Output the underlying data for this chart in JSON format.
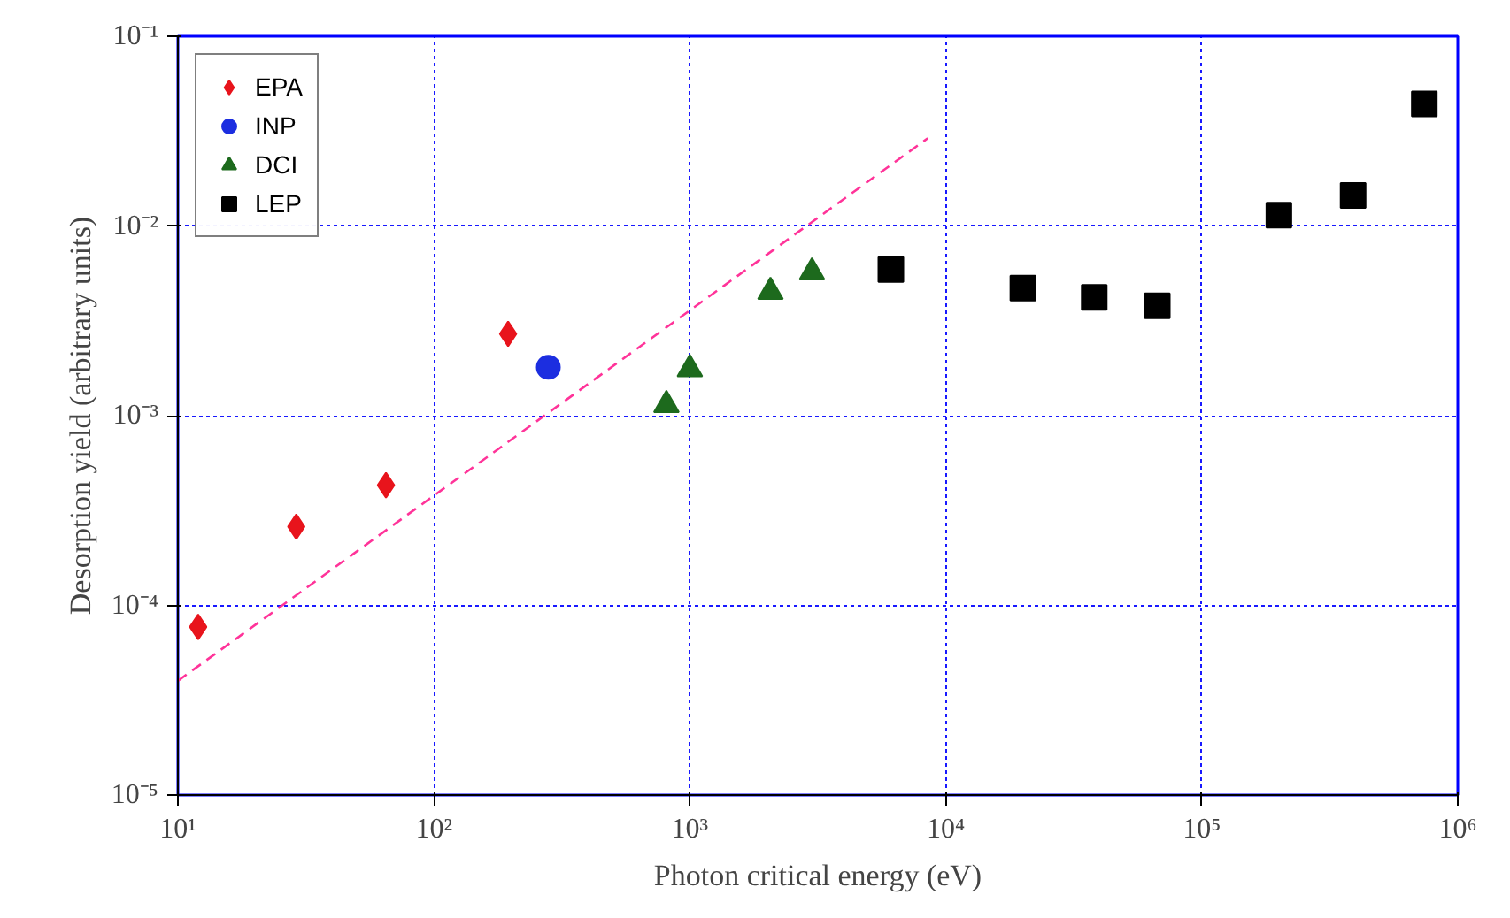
{
  "chart_data": {
    "type": "scatter",
    "xlabel": "Photon critical energy (eV)",
    "ylabel": "Desorption yield (arbitrary units)",
    "log": "xy",
    "grid": true,
    "legend": "top left",
    "xlim": [
      10,
      1000000
    ],
    "ylim": [
      1e-05,
      0.1
    ],
    "xticks": [
      {
        "value": 10,
        "label": "10¹"
      },
      {
        "value": 100,
        "label": "10²"
      },
      {
        "value": 1000,
        "label": "10³"
      },
      {
        "value": 10000,
        "label": "10⁴"
      },
      {
        "value": 100000,
        "label": "10⁵"
      },
      {
        "value": 1000000,
        "label": "10⁶"
      }
    ],
    "yticks": [
      {
        "value": 1e-05,
        "label": "10⁻⁵"
      },
      {
        "value": 0.0001,
        "label": "10⁻⁴"
      },
      {
        "value": 0.001,
        "label": "10⁻³"
      },
      {
        "value": 0.01,
        "label": "10⁻²"
      },
      {
        "value": 0.1,
        "label": "10⁻¹"
      }
    ],
    "series": [
      {
        "name": "EPA",
        "color": "#e8141c",
        "marker": "diamond",
        "x": [
          12,
          29,
          65,
          195
        ],
        "values": [
          7.7e-05,
          0.00026,
          0.00043,
          0.0027
        ]
      },
      {
        "name": "INP",
        "color": "#1c2ee0",
        "marker": "circle",
        "x": [
          280
        ],
        "values": [
          0.0018
        ]
      },
      {
        "name": "DCI",
        "color": "#1d6a1d",
        "marker": "triangle",
        "x": [
          810,
          1000,
          2065,
          3000
        ],
        "values": [
          0.00114,
          0.00176,
          0.0045,
          0.0057
        ]
      },
      {
        "name": "LEP",
        "color": "#000000",
        "marker": "square",
        "x": [
          6100,
          20000,
          38000,
          67000,
          200000,
          390000,
          740000
        ],
        "values": [
          0.0059,
          0.0047,
          0.0042,
          0.0038,
          0.0114,
          0.0145,
          0.044
        ]
      },
      {
        "type": "line",
        "color": "#ff3399",
        "line_style": "dashed",
        "marker": "none",
        "x": [
          10,
          8500
        ],
        "values": [
          4e-05,
          0.029
        ]
      }
    ]
  }
}
